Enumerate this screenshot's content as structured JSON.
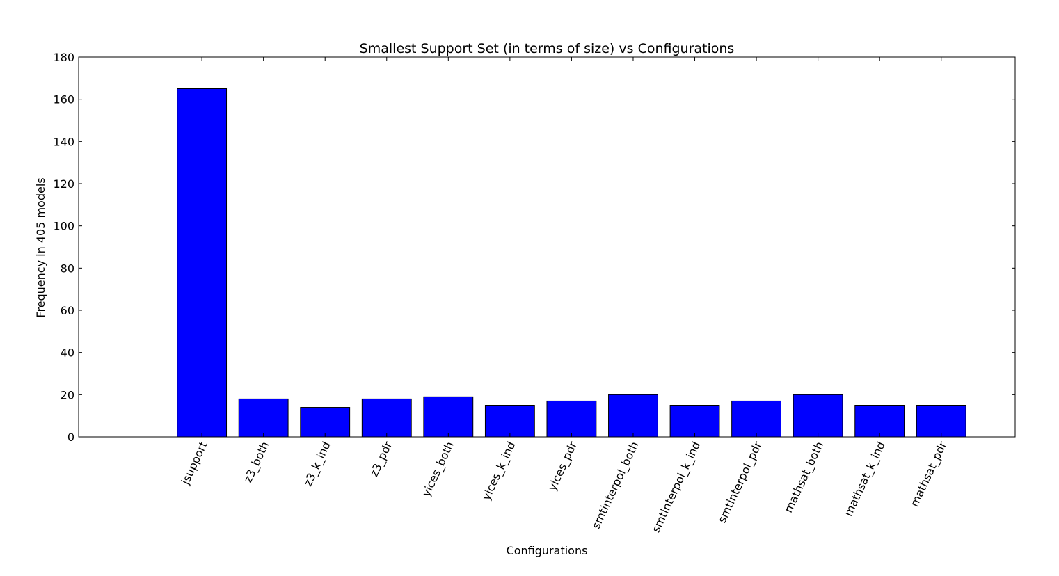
{
  "chart_data": {
    "type": "bar",
    "title": "Smallest Support Set (in terms of size) vs Configurations",
    "xlabel": "Configurations",
    "ylabel": "Frequency in 405 models",
    "categories": [
      "jsupport",
      "z3_both",
      "z3_k_ind",
      "z3_pdr",
      "yices_both",
      "yices_k_ind",
      "yices_pdr",
      "smtinterpol_both",
      "smtinterpol_k_ind",
      "smtinterpol_pdr",
      "mathsat_both",
      "mathsat_k_ind",
      "mathsat_pdr"
    ],
    "values": [
      165,
      18,
      14,
      18,
      19,
      15,
      17,
      20,
      15,
      17,
      20,
      15,
      15
    ],
    "ylim": [
      0,
      180
    ],
    "yticks": [
      0,
      20,
      40,
      60,
      80,
      100,
      120,
      140,
      160,
      180
    ],
    "bar_color": "#0000ff",
    "grid": false,
    "legend": "none"
  }
}
